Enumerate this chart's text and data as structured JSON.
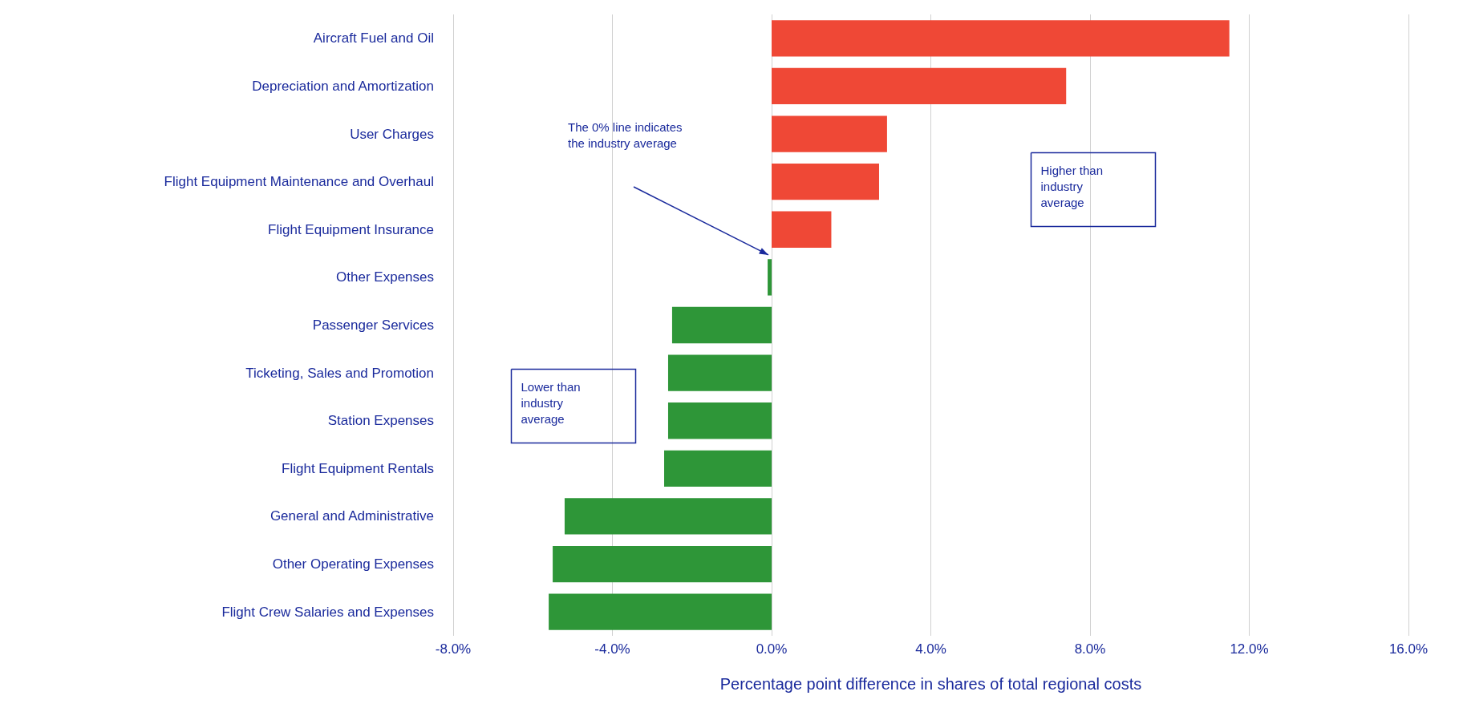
{
  "chart_data": {
    "type": "bar",
    "orientation": "horizontal",
    "xlabel": "Percentage point difference in shares of total regional costs",
    "categories": [
      "Aircraft Fuel and Oil",
      "Depreciation and Amortization",
      "User Charges",
      "Flight Equipment Maintenance and Overhaul",
      "Flight Equipment Insurance",
      "Other Expenses",
      "Passenger Services",
      "Ticketing, Sales and Promotion",
      "Station Expenses",
      "Flight Equipment Rentals",
      "General and Administrative",
      "Other Operating Expenses",
      "Flight Crew Salaries and Expenses"
    ],
    "values": [
      11.5,
      7.4,
      2.9,
      2.7,
      1.5,
      -0.1,
      -2.5,
      -2.6,
      -2.6,
      -2.7,
      -5.2,
      -5.5,
      -5.6
    ],
    "colors": [
      "#ef4836",
      "#ef4836",
      "#ef4836",
      "#ef4836",
      "#ef4836",
      "#2e9638",
      "#2e9638",
      "#2e9638",
      "#2e9638",
      "#2e9638",
      "#2e9638",
      "#2e9638",
      "#2e9638"
    ],
    "xlim": [
      -8,
      16
    ],
    "xticks": [
      {
        "value": -8,
        "label": "-8.0%"
      },
      {
        "value": -4,
        "label": "-4.0%"
      },
      {
        "value": 0,
        "label": "0.0%"
      },
      {
        "value": 4,
        "label": "4.0%"
      },
      {
        "value": 8,
        "label": "8.0%"
      },
      {
        "value": 12,
        "label": "12.0%"
      },
      {
        "value": 16,
        "label": "16.0%"
      }
    ],
    "grid": "x",
    "annotations": [
      "The 0% line indicates the industry average",
      "Higher than industry average",
      "Lower than industry average"
    ]
  }
}
